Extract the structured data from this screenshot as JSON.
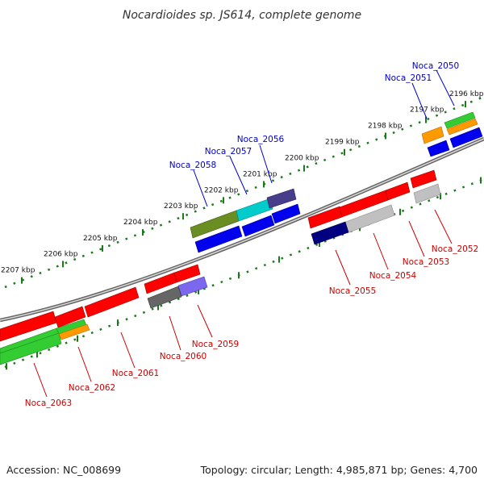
{
  "title": "Nocardioides sp. JS614, complete genome",
  "footer": {
    "accession": "Accession: NC_008699",
    "summary": "Topology: circular; Length: 4,985,871 bp; Genes: 4,700"
  },
  "colors": {
    "label_top": "#0000cc",
    "label_bottom": "#cc0000",
    "tick": "#1a7a1a",
    "backbone": "#888888"
  },
  "ticks": [
    {
      "label": "2196 kbp"
    },
    {
      "label": "2197 kbp"
    },
    {
      "label": "2198 kbp"
    },
    {
      "label": "2199 kbp"
    },
    {
      "label": "2200 kbp"
    },
    {
      "label": "2201 kbp"
    },
    {
      "label": "2202 kbp"
    },
    {
      "label": "2203 kbp"
    },
    {
      "label": "2204 kbp"
    },
    {
      "label": "2205 kbp"
    },
    {
      "label": "2206 kbp"
    },
    {
      "label": "2207 kbp"
    }
  ],
  "genes_top": [
    {
      "name": "Noca_2050"
    },
    {
      "name": "Noca_2051"
    },
    {
      "name": "Noca_2056"
    },
    {
      "name": "Noca_2057"
    },
    {
      "name": "Noca_2058"
    }
  ],
  "genes_bottom": [
    {
      "name": "Noca_2052"
    },
    {
      "name": "Noca_2053"
    },
    {
      "name": "Noca_2054"
    },
    {
      "name": "Noca_2055"
    },
    {
      "name": "Noca_2059"
    },
    {
      "name": "Noca_2060"
    },
    {
      "name": "Noca_2061"
    },
    {
      "name": "Noca_2062"
    },
    {
      "name": "Noca_2063"
    }
  ]
}
